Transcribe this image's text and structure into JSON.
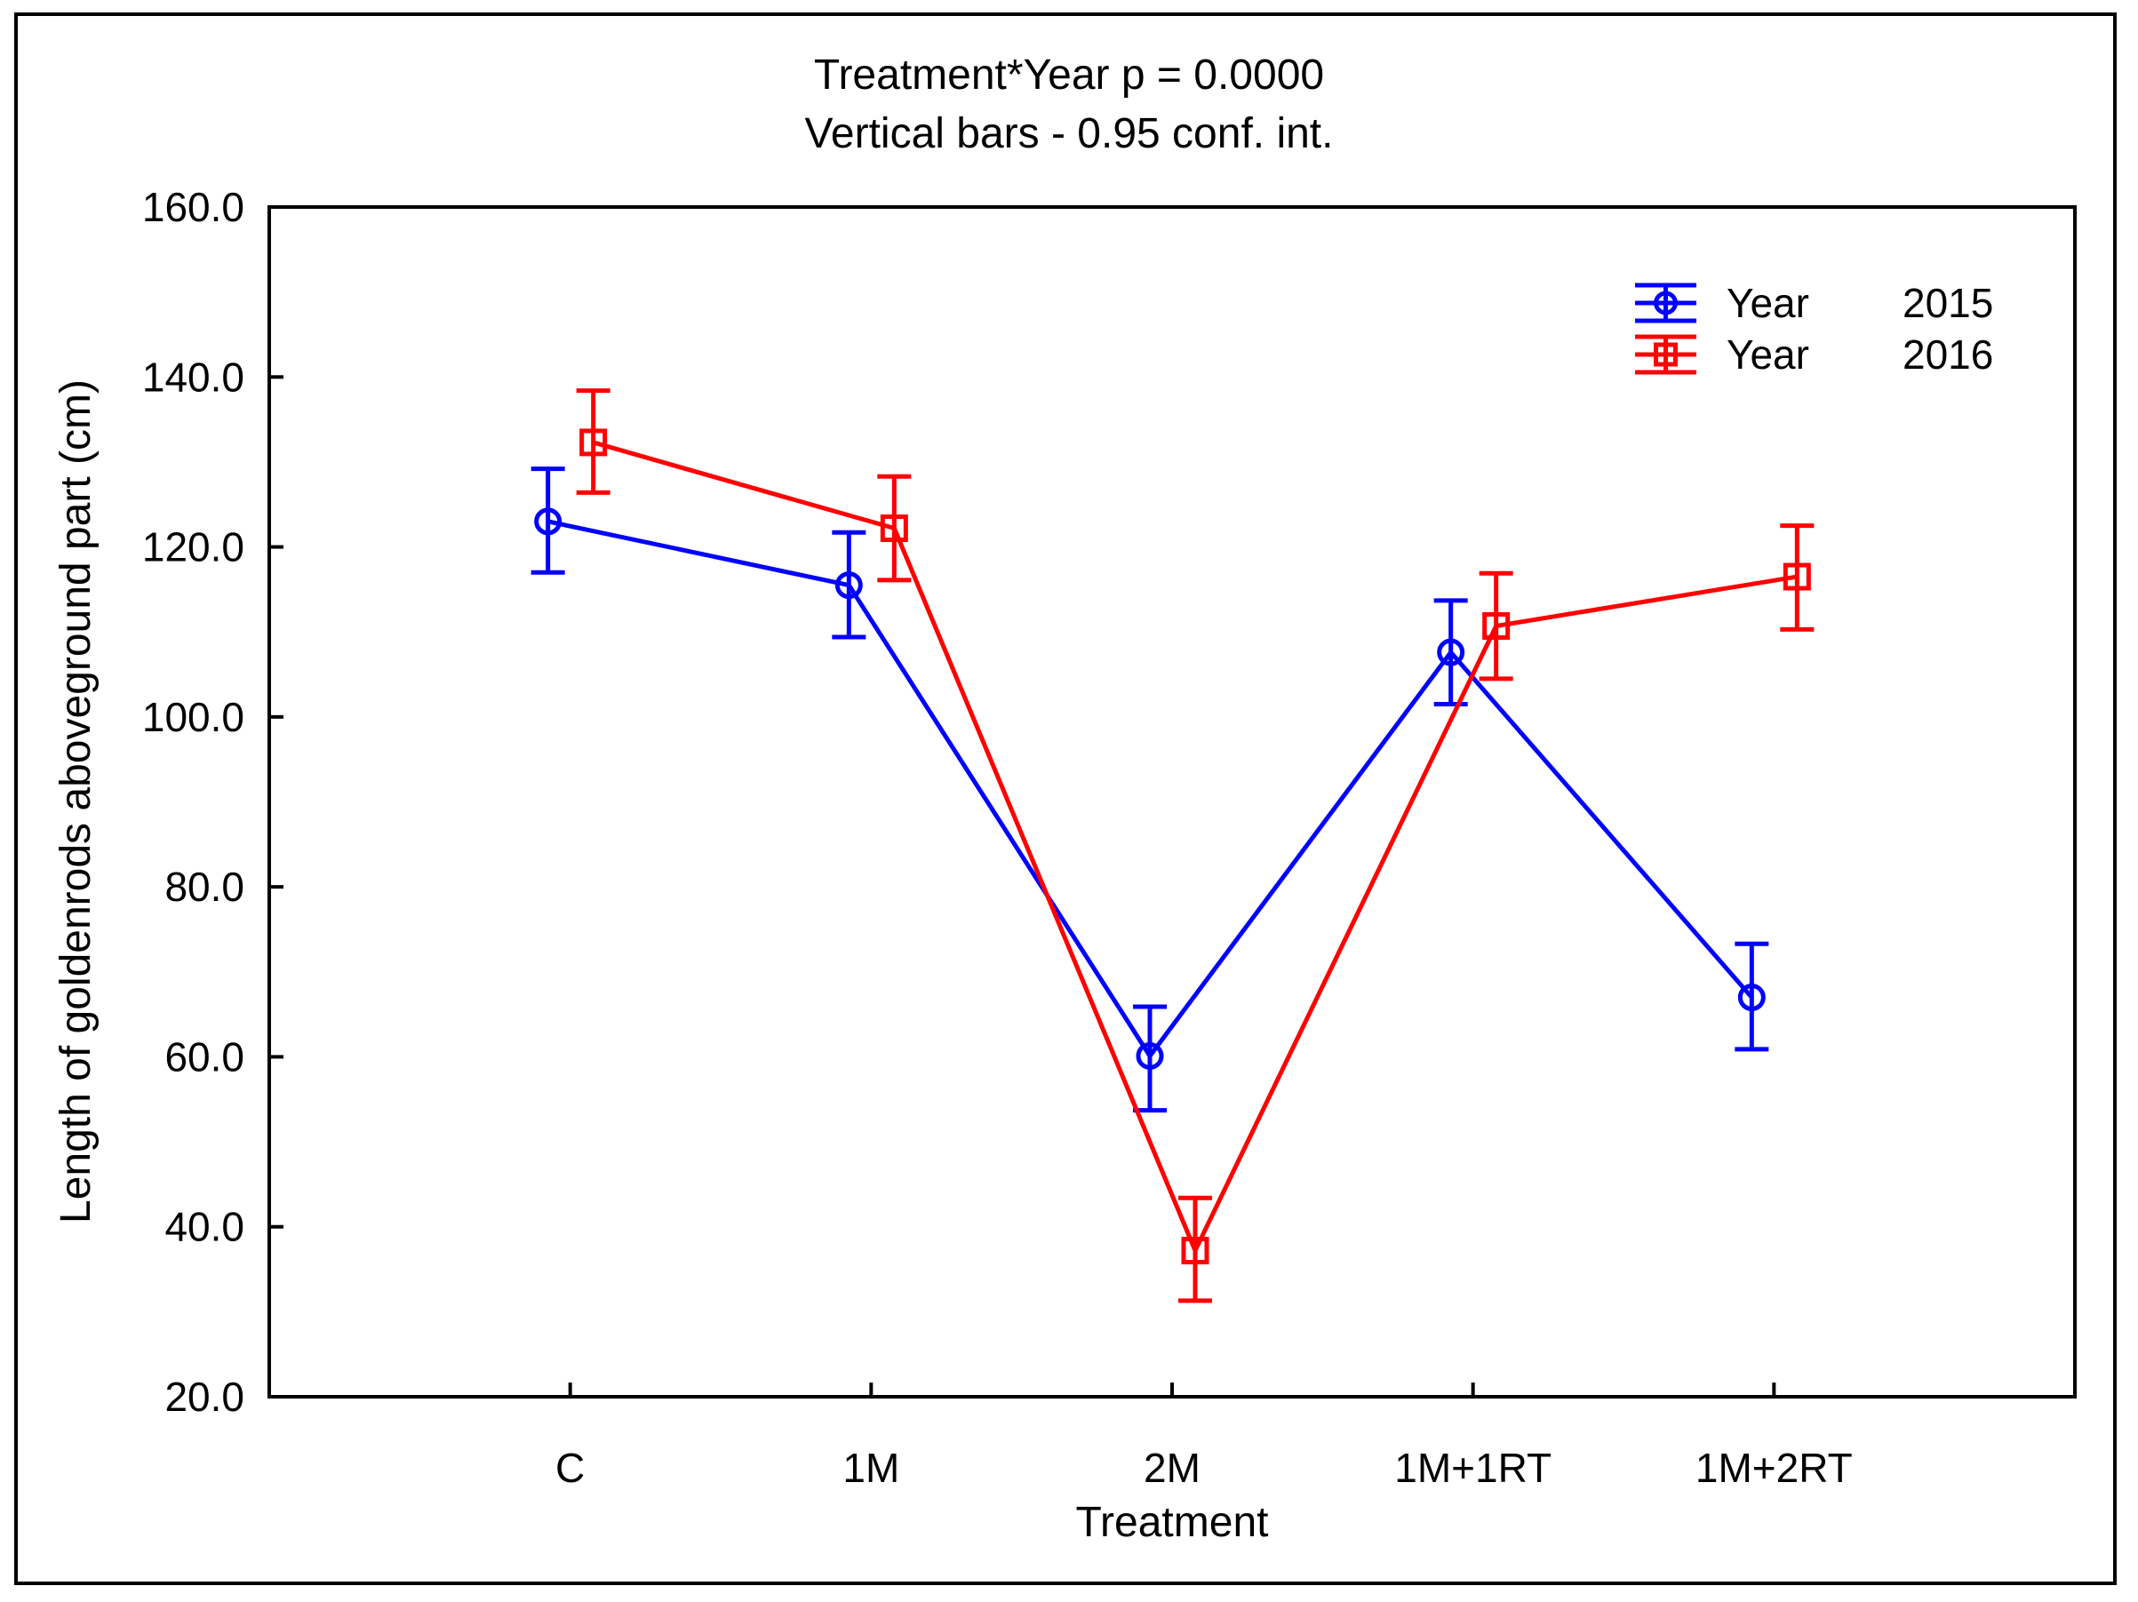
{
  "page": {
    "background": "#ffffff",
    "frame_color": "#000000",
    "text_color": "#000000"
  },
  "chart_data": {
    "type": "line",
    "title": "Treatment*Year p = 0.0000",
    "subtitle": "Vertical bars - 0.95 conf. int.",
    "xlabel": "Treatment",
    "ylabel": "Length of goldenrods aboveground part (cm)",
    "categories": [
      "C",
      "1M",
      "2M",
      "1M+1RT",
      "1M+2RT"
    ],
    "ylim": [
      20,
      160
    ],
    "ytick_step": 20,
    "ytick_decimals": 1,
    "grid": false,
    "legend_position": "inside-top-right",
    "error_bars": "0.95 conf. int.",
    "series": [
      {
        "name": "Year 2015",
        "legend_label": "Year",
        "legend_value": "2015",
        "color": "#0000ff",
        "marker": "circle",
        "values": [
          123.0,
          115.5,
          60.1,
          107.6,
          67.0
        ],
        "ci_low": [
          117.0,
          109.4,
          53.7,
          101.5,
          60.9
        ],
        "ci_high": [
          129.2,
          121.7,
          65.9,
          113.7,
          73.3
        ]
      },
      {
        "name": "Year 2016",
        "legend_label": "Year",
        "legend_value": "2016",
        "color": "#ff0000",
        "marker": "square",
        "values": [
          132.3,
          122.2,
          37.2,
          110.7,
          116.5
        ],
        "ci_low": [
          126.4,
          116.1,
          31.3,
          104.5,
          110.3
        ],
        "ci_high": [
          138.4,
          128.3,
          43.4,
          116.9,
          122.5
        ]
      }
    ]
  }
}
